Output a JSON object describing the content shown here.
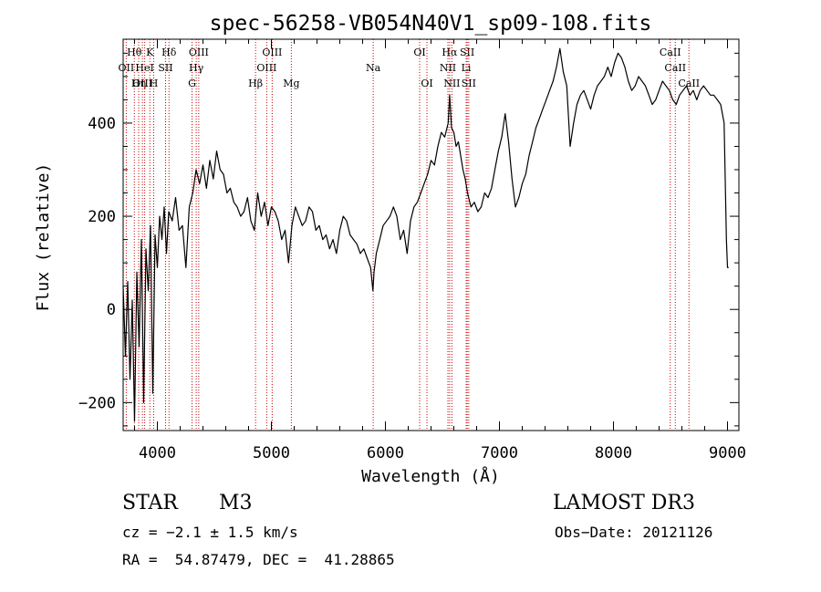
{
  "chart_data": {
    "type": "line",
    "title": "spec-56258-VB054N40V1_sp09-108.fits",
    "xlabel": "Wavelength (Å)",
    "ylabel": "Flux (relative)",
    "xlim": [
      3700,
      9100
    ],
    "ylim": [
      -260,
      580
    ],
    "x_ticks": [
      4000,
      5000,
      6000,
      7000,
      8000,
      9000
    ],
    "y_ticks": [
      -200,
      0,
      200,
      400
    ],
    "x_tick_labels": [
      "4000",
      "5000",
      "6000",
      "7000",
      "8000",
      "9000"
    ],
    "y_tick_labels": [
      "−200",
      "0",
      "200",
      "400"
    ],
    "grid": false,
    "series": [
      {
        "color": "#000000",
        "x": [
          3700,
          3720,
          3740,
          3760,
          3780,
          3800,
          3820,
          3840,
          3860,
          3880,
          3900,
          3920,
          3940,
          3960,
          3980,
          4000,
          4020,
          4040,
          4060,
          4080,
          4100,
          4130,
          4160,
          4190,
          4220,
          4250,
          4280,
          4310,
          4340,
          4370,
          4400,
          4430,
          4460,
          4490,
          4520,
          4550,
          4580,
          4610,
          4640,
          4670,
          4700,
          4730,
          4760,
          4790,
          4820,
          4850,
          4880,
          4910,
          4940,
          4970,
          5000,
          5030,
          5060,
          5090,
          5120,
          5150,
          5180,
          5210,
          5240,
          5270,
          5300,
          5330,
          5360,
          5390,
          5420,
          5450,
          5480,
          5510,
          5540,
          5570,
          5600,
          5630,
          5660,
          5690,
          5720,
          5750,
          5780,
          5810,
          5840,
          5870,
          5890,
          5900,
          5920,
          5950,
          5980,
          6010,
          6040,
          6070,
          6100,
          6130,
          6160,
          6190,
          6220,
          6250,
          6280,
          6310,
          6340,
          6370,
          6400,
          6430,
          6460,
          6490,
          6520,
          6550,
          6563,
          6580,
          6600,
          6620,
          6640,
          6660,
          6680,
          6700,
          6720,
          6750,
          6780,
          6810,
          6840,
          6870,
          6900,
          6930,
          6960,
          6990,
          7020,
          7050,
          7080,
          7110,
          7140,
          7170,
          7200,
          7230,
          7260,
          7290,
          7320,
          7350,
          7380,
          7410,
          7440,
          7470,
          7500,
          7530,
          7560,
          7590,
          7620,
          7650,
          7680,
          7710,
          7740,
          7770,
          7800,
          7830,
          7860,
          7890,
          7920,
          7950,
          7980,
          8010,
          8040,
          8070,
          8100,
          8130,
          8160,
          8190,
          8220,
          8250,
          8280,
          8310,
          8340,
          8370,
          8400,
          8430,
          8460,
          8490,
          8520,
          8550,
          8580,
          8610,
          8640,
          8670,
          8700,
          8730,
          8760,
          8790,
          8820,
          8850,
          8880,
          8910,
          8940,
          8970,
          8990,
          9000,
          9010
        ],
        "y": [
          50,
          -100,
          60,
          -150,
          20,
          -240,
          80,
          -80,
          150,
          -200,
          130,
          40,
          180,
          -180,
          160,
          90,
          200,
          150,
          220,
          120,
          210,
          190,
          240,
          170,
          180,
          90,
          220,
          250,
          300,
          270,
          310,
          260,
          320,
          280,
          340,
          300,
          290,
          250,
          260,
          230,
          220,
          200,
          210,
          240,
          190,
          170,
          250,
          200,
          230,
          180,
          220,
          210,
          190,
          150,
          170,
          100,
          180,
          220,
          200,
          180,
          190,
          220,
          210,
          170,
          180,
          150,
          160,
          130,
          150,
          120,
          170,
          200,
          190,
          160,
          150,
          140,
          120,
          130,
          110,
          90,
          40,
          80,
          120,
          150,
          180,
          190,
          200,
          220,
          200,
          150,
          170,
          120,
          190,
          220,
          230,
          250,
          270,
          290,
          320,
          310,
          350,
          380,
          370,
          400,
          460,
          390,
          380,
          350,
          360,
          330,
          300,
          280,
          250,
          220,
          230,
          210,
          220,
          250,
          240,
          260,
          300,
          340,
          370,
          420,
          360,
          280,
          220,
          240,
          270,
          290,
          330,
          360,
          390,
          410,
          430,
          450,
          470,
          490,
          520,
          560,
          510,
          480,
          350,
          400,
          440,
          460,
          470,
          450,
          430,
          460,
          480,
          490,
          500,
          520,
          500,
          530,
          550,
          540,
          520,
          490,
          470,
          480,
          500,
          490,
          480,
          460,
          440,
          450,
          470,
          490,
          480,
          470,
          450,
          440,
          460,
          470,
          480,
          460,
          470,
          450,
          470,
          480,
          470,
          460,
          460,
          450,
          440,
          400,
          150,
          90,
          90
        ]
      }
    ],
    "emission_lines": [
      {
        "name": "Hθ",
        "wave": 3798,
        "row": 0
      },
      {
        "name": "OII",
        "wave": 3727,
        "row": 1
      },
      {
        "name": "OIII",
        "wave": 3869,
        "row": 2
      },
      {
        "name": "Hη",
        "wave": 3836,
        "row": 2
      },
      {
        "name": "HeI",
        "wave": 3889,
        "row": 1
      },
      {
        "name": "K",
        "wave": 3934,
        "row": 0
      },
      {
        "name": "H",
        "wave": 3968,
        "row": 2
      },
      {
        "name": "SII",
        "wave": 4072,
        "row": 1
      },
      {
        "name": "Hδ",
        "wave": 4102,
        "row": 0
      },
      {
        "name": "OIII",
        "wave": 4363,
        "row": 0
      },
      {
        "name": "Hγ",
        "wave": 4341,
        "row": 1
      },
      {
        "name": "G",
        "wave": 4304,
        "row": 2
      },
      {
        "name": "Hβ",
        "wave": 4861,
        "row": 2
      },
      {
        "name": "OIII",
        "wave": 4959,
        "row": 1
      },
      {
        "name": "OIII",
        "wave": 5007,
        "row": 0
      },
      {
        "name": "Mg",
        "wave": 5175,
        "row": 2
      },
      {
        "name": "Na",
        "wave": 5893,
        "row": 1
      },
      {
        "name": "OI",
        "wave": 6300,
        "row": 0
      },
      {
        "name": "OI",
        "wave": 6364,
        "row": 2
      },
      {
        "name": "Hα",
        "wave": 6563,
        "row": 0
      },
      {
        "name": "NII",
        "wave": 6548,
        "row": 1
      },
      {
        "name": "NII",
        "wave": 6583,
        "row": 2
      },
      {
        "name": "SII",
        "wave": 6717,
        "row": 0
      },
      {
        "name": "Li",
        "wave": 6708,
        "row": 1
      },
      {
        "name": "SII",
        "wave": 6731,
        "row": 2
      },
      {
        "name": "CaII",
        "wave": 8498,
        "row": 0
      },
      {
        "name": "CaII",
        "wave": 8542,
        "row": 1
      },
      {
        "name": "CaII",
        "wave": 8662,
        "row": 2
      }
    ]
  },
  "info": {
    "object_class": "STAR",
    "subclass": "M3",
    "survey": "LAMOST DR3",
    "redshift": "cz = −2.1 ± 1.5 km/s",
    "obs_date": "Obs−Date: 20121126",
    "coords": "RA =  54.87479, DEC =  41.28865"
  },
  "colors": {
    "line_marker": "#cc0000",
    "spectrum": "#000000",
    "axes": "#000000"
  }
}
